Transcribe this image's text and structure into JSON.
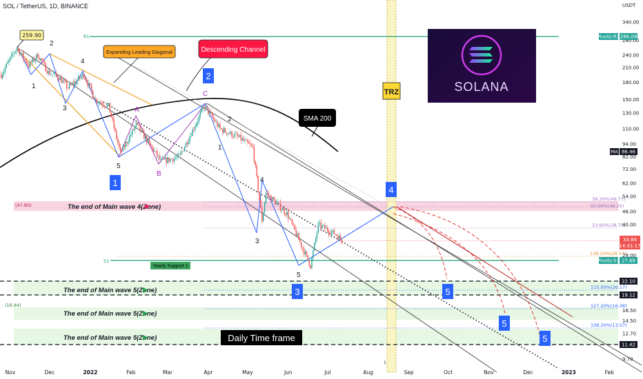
{
  "header": {
    "symbol_line": "SOL / TetherUS, 1D, BINANCE"
  },
  "axis": {
    "currency": "USDT",
    "y_ticks": [
      "340.00",
      "280.00",
      "240.00",
      "210.00",
      "180.00",
      "150.00",
      "130.00",
      "110.00",
      "94.00",
      "82.00",
      "72.00",
      "62.00",
      "54.00",
      "46.00",
      "40.00",
      "29.00",
      "14.50",
      "12.70",
      "9.70"
    ],
    "x_ticks": [
      "Nov",
      "Dec",
      "2022",
      "Feb",
      "Mar",
      "Apr",
      "May",
      "Jun",
      "Jul",
      "Aug",
      "Sep",
      "Oct",
      "Nov",
      "Dec",
      "2023",
      "Feb"
    ]
  },
  "badges": {
    "pivots_r1": "Pivots:R1",
    "r1_value": "286.09",
    "ma": "MA",
    "ma_value": "86.46",
    "current_price": "33.84",
    "countdown": "14:31:17",
    "pivots_s1": "Pivots:S1",
    "s1_value": "27.69",
    "zone_22": "22.10",
    "zone_19": "19.12",
    "zone_165": "16.50",
    "zone_1142": "11.42"
  },
  "labels": {
    "top_price": "259.90",
    "expanding": "Expanding Leading Diagonal",
    "descending": "Descending Channel",
    "sma": "SMA 200",
    "trz": "TRZ",
    "daily": "Daily Time frame",
    "yearly_support": "Yearly Support 1",
    "r1_line": "R1",
    "s1_line": "S1",
    "wave4_zone_prefix": "(47.80)",
    "zone5_prefix": "(16.84)",
    "wave4_zone": "The end of Main wave 4(Zone)",
    "wave5_zone_1": "The end of Main wave 5(Zone)",
    "wave5_zone_2": "The end of Main wave 5(Zone)",
    "wave5_zone_3": "The end of Main wave 5(Zone)",
    "logo_text": "SOLANA",
    "fib_382": "38.20%(49.77)",
    "fib_50": "50.00%(46.25)",
    "fib_236": "23.60%(38.75)",
    "fib_1382a": "138.20%(28.57)",
    "fib_115": "115.00%(20.17)",
    "fib_1272": "127.20%(16.38)",
    "fib_1382b": "138.20%(13.57)"
  },
  "waves": {
    "w_1": "1",
    "w_2": "2",
    "w_3": "3",
    "w_4": "4",
    "w_5": "5",
    "s_A": "A",
    "s_B": "B",
    "s_C": "C",
    "sub_1": "1",
    "sub_2": "2",
    "sub_3": "3",
    "sub_4": "4",
    "sub_5": "5",
    "box_1": "1",
    "box_2": "2",
    "box_3": "3",
    "box_4": "4",
    "box_5a": "5",
    "box_5b": "5",
    "box_5c": "5",
    "aux_1": "1"
  },
  "chart_data": {
    "type": "candlestick",
    "symbol": "SOL / TetherUS",
    "timeframe": "1D",
    "exchange": "BINANCE",
    "approx_close_path": [
      {
        "date": "2021-10-25",
        "close": 195
      },
      {
        "date": "2021-11-06",
        "close": 259.9
      },
      {
        "date": "2021-11-15",
        "close": 215
      },
      {
        "date": "2021-11-22",
        "close": 240
      },
      {
        "date": "2021-11-30",
        "close": 200
      },
      {
        "date": "2021-12-08",
        "close": 190
      },
      {
        "date": "2021-12-15",
        "close": 170
      },
      {
        "date": "2021-12-27",
        "close": 195
      },
      {
        "date": "2022-01-05",
        "close": 150
      },
      {
        "date": "2022-01-15",
        "close": 140
      },
      {
        "date": "2022-01-24",
        "close": 85
      },
      {
        "date": "2022-02-05",
        "close": 115
      },
      {
        "date": "2022-02-24",
        "close": 78
      },
      {
        "date": "2022-03-10",
        "close": 82
      },
      {
        "date": "2022-03-29",
        "close": 140
      },
      {
        "date": "2022-04-10",
        "close": 110
      },
      {
        "date": "2022-04-25",
        "close": 100
      },
      {
        "date": "2022-05-05",
        "close": 90
      },
      {
        "date": "2022-05-12",
        "close": 42
      },
      {
        "date": "2022-05-15",
        "close": 56
      },
      {
        "date": "2022-05-31",
        "close": 45
      },
      {
        "date": "2022-06-18",
        "close": 26
      },
      {
        "date": "2022-06-24",
        "close": 40
      },
      {
        "date": "2022-07-08",
        "close": 36
      },
      {
        "date": "2022-07-12",
        "close": 33.84
      }
    ],
    "indicators": {
      "sma": "SMA 200",
      "ma_value": 86.46
    },
    "pivots": {
      "R1": 286.09,
      "S1": 27.69
    },
    "fib_levels": [
      {
        "label": "38.20%",
        "value": 49.77
      },
      {
        "label": "50.00%",
        "value": 46.25
      },
      {
        "label": "23.60%",
        "value": 38.75
      },
      {
        "label": "138.20%",
        "value": 28.57
      },
      {
        "label": "115.00%",
        "value": 20.17
      },
      {
        "label": "127.20%",
        "value": 16.38
      },
      {
        "label": "138.20%",
        "value": 13.57
      }
    ],
    "zone_lines": [
      22.1,
      19.12,
      16.5,
      11.42
    ],
    "y_scale": "log"
  }
}
